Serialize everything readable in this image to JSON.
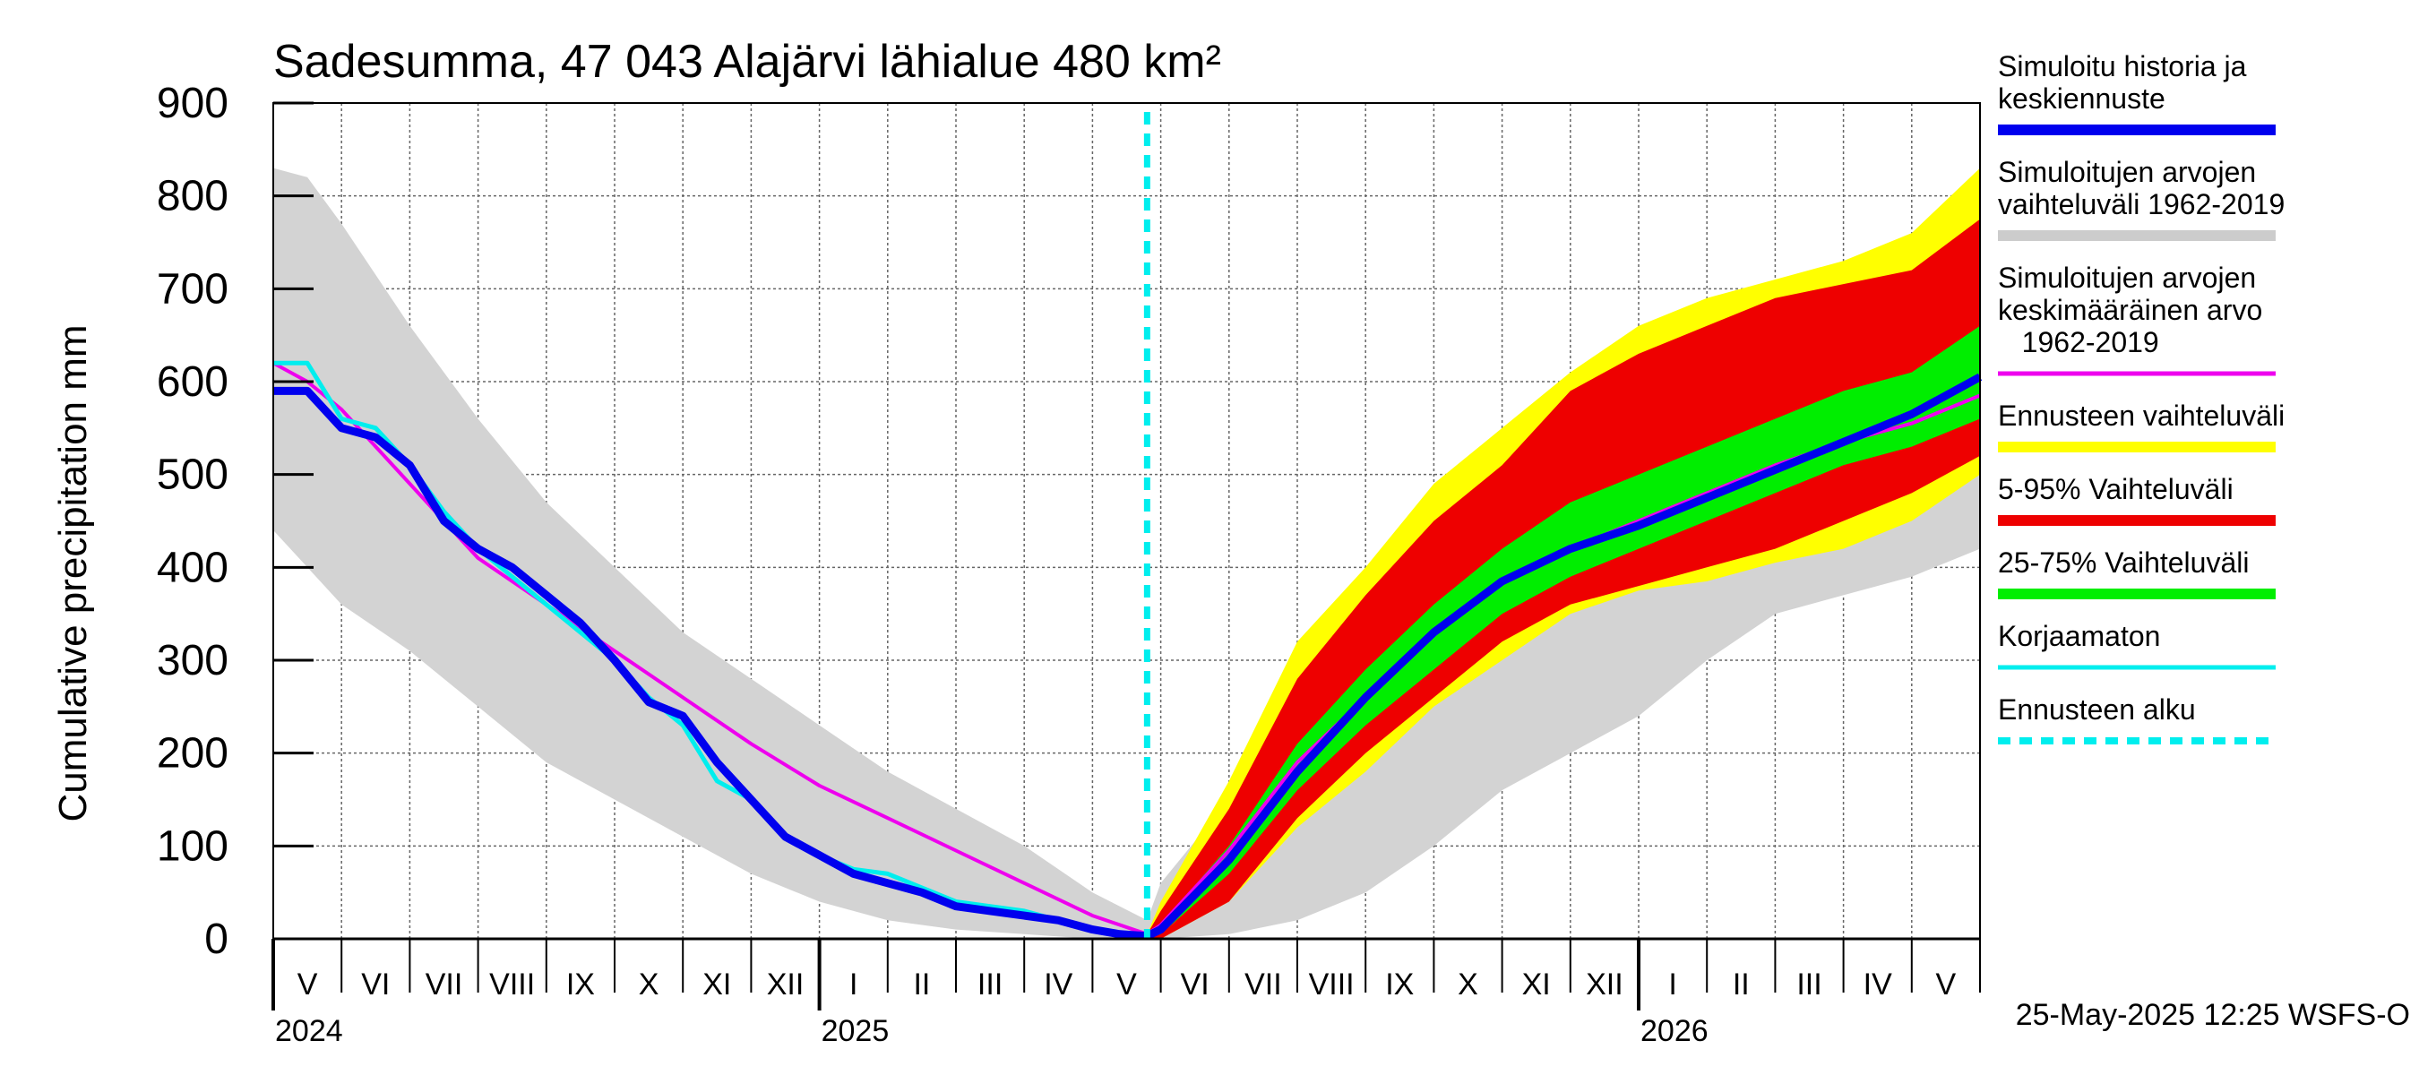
{
  "chart_data": {
    "type": "area",
    "title": "Sadesumma, 47 043 Alajärvi lähialue 480 km²",
    "ylabel": "Cumulative precipitation   mm",
    "xlabel": "",
    "ylim": [
      0,
      900
    ],
    "yticks": [
      0,
      100,
      200,
      300,
      400,
      500,
      600,
      700,
      800,
      900
    ],
    "grid": true,
    "x_unit": "months since 1 May 2024",
    "xlim": [
      0,
      25
    ],
    "month_labels": [
      "V",
      "VI",
      "VII",
      "VIII",
      "IX",
      "X",
      "XI",
      "XII",
      "I",
      "II",
      "III",
      "IV",
      "V",
      "VI",
      "VII",
      "VIII",
      "IX",
      "X",
      "XI",
      "XII",
      "I",
      "II",
      "III",
      "IV",
      "V"
    ],
    "year_labels": [
      {
        "label": "2024",
        "x": 0
      },
      {
        "label": "2025",
        "x": 8
      },
      {
        "label": "2026",
        "x": 20
      }
    ],
    "forecast_start_x": 12.8,
    "legend_position": "right",
    "footer": "25-May-2025 12:25 WSFS-O",
    "legend": [
      {
        "label": "Simuloitu historia ja\nkeskiennuste",
        "color": "#0000ee",
        "style": "thick"
      },
      {
        "label": "Simuloitujen arvojen\nvaihteluväli 1962-2019",
        "color": "#cccccc",
        "style": "thick"
      },
      {
        "label": "Simuloitujen arvojen\nkeskimääräinen arvo\n   1962-2019",
        "color": "#ee00ee",
        "style": "thin"
      },
      {
        "label": "Ennusteen vaihteluväli",
        "color": "#ffff00",
        "style": "thick"
      },
      {
        "label": "5-95% Vaihteluväli",
        "color": "#ee0000",
        "style": "thick"
      },
      {
        "label": "25-75% Vaihteluväli",
        "color": "#00ee00",
        "style": "thick"
      },
      {
        "label": "Korjaamaton",
        "color": "#00eeee",
        "style": "thin"
      },
      {
        "label": "Ennusteen alku",
        "color": "#00eeee",
        "style": "dashed"
      }
    ],
    "series": [
      {
        "name": "Simuloitujen arvojen vaihteluväli 1962-2019 (upper)",
        "color": "#cccccc",
        "x": [
          0,
          0.5,
          1,
          2,
          3,
          4,
          5,
          6,
          7,
          8,
          9,
          10,
          11,
          12,
          12.8,
          13,
          14,
          15,
          16,
          17,
          18,
          19,
          20,
          21,
          22,
          23,
          24,
          25
        ],
        "values": [
          830,
          820,
          770,
          660,
          560,
          470,
          400,
          330,
          280,
          230,
          180,
          140,
          100,
          50,
          20,
          60,
          150,
          240,
          320,
          390,
          440,
          490,
          540,
          590,
          640,
          700,
          760,
          790
        ]
      },
      {
        "name": "Simuloitujen arvojen vaihteluväli 1962-2019 (lower)",
        "color": "#cccccc",
        "x": [
          0,
          0.5,
          1,
          2,
          3,
          4,
          5,
          6,
          7,
          8,
          9,
          10,
          11,
          12,
          12.8,
          13,
          14,
          15,
          16,
          17,
          18,
          19,
          20,
          21,
          22,
          23,
          24,
          25
        ],
        "values": [
          440,
          400,
          360,
          310,
          250,
          190,
          150,
          110,
          70,
          40,
          20,
          10,
          5,
          0,
          0,
          0,
          5,
          20,
          50,
          100,
          160,
          200,
          240,
          300,
          350,
          370,
          390,
          420
        ]
      },
      {
        "name": "Ennusteen vaihteluväli (upper)",
        "color": "#ffff00",
        "x": [
          12.8,
          13,
          14,
          15,
          16,
          17,
          18,
          19,
          20,
          21,
          22,
          23,
          24,
          25
        ],
        "values": [
          5,
          40,
          170,
          320,
          400,
          490,
          550,
          610,
          660,
          690,
          710,
          730,
          760,
          830
        ]
      },
      {
        "name": "Ennusteen vaihteluväli (lower)",
        "color": "#ffff00",
        "x": [
          12.8,
          13,
          14,
          15,
          16,
          17,
          18,
          19,
          20,
          21,
          22,
          23,
          24,
          25
        ],
        "values": [
          0,
          0,
          40,
          120,
          180,
          250,
          300,
          350,
          375,
          385,
          405,
          420,
          450,
          500
        ]
      },
      {
        "name": "5-95% Vaihteluväli (upper)",
        "color": "#ee0000",
        "x": [
          12.8,
          13,
          14,
          15,
          16,
          17,
          18,
          19,
          20,
          21,
          22,
          23,
          24,
          25
        ],
        "values": [
          5,
          30,
          140,
          280,
          370,
          450,
          510,
          590,
          630,
          660,
          690,
          705,
          720,
          775
        ]
      },
      {
        "name": "5-95% Vaihteluväli (lower)",
        "color": "#ee0000",
        "x": [
          12.8,
          13,
          14,
          15,
          16,
          17,
          18,
          19,
          20,
          21,
          22,
          23,
          24,
          25
        ],
        "values": [
          0,
          0,
          40,
          130,
          200,
          260,
          320,
          360,
          380,
          400,
          420,
          450,
          480,
          520
        ]
      },
      {
        "name": "25-75% Vaihteluväli (upper)",
        "color": "#00ee00",
        "x": [
          12.8,
          13,
          14,
          15,
          16,
          17,
          18,
          19,
          20,
          21,
          22,
          23,
          24,
          25
        ],
        "values": [
          3,
          15,
          100,
          210,
          290,
          360,
          420,
          470,
          500,
          530,
          560,
          590,
          610,
          660
        ]
      },
      {
        "name": "25-75% Vaihteluväli (lower)",
        "color": "#00ee00",
        "x": [
          12.8,
          13,
          14,
          15,
          16,
          17,
          18,
          19,
          20,
          21,
          22,
          23,
          24,
          25
        ],
        "values": [
          0,
          5,
          70,
          160,
          230,
          290,
          350,
          390,
          420,
          450,
          480,
          510,
          530,
          560
        ]
      },
      {
        "name": "Simuloitujen arvojen keskimääräinen arvo 1962-2019",
        "color": "#ee00ee",
        "x": [
          0,
          0.5,
          1,
          2,
          3,
          4,
          5,
          6,
          7,
          8,
          9,
          10,
          11,
          12,
          12.8,
          13,
          14,
          15,
          16,
          17,
          18,
          19,
          20,
          21,
          22,
          23,
          24,
          25
        ],
        "values": [
          620,
          600,
          570,
          490,
          410,
          360,
          310,
          260,
          210,
          165,
          130,
          95,
          60,
          25,
          5,
          15,
          95,
          190,
          260,
          330,
          385,
          420,
          450,
          480,
          510,
          535,
          555,
          585
        ]
      },
      {
        "name": "Korjaamaton",
        "color": "#00eeee",
        "x": [
          0,
          0.5,
          1,
          1.5,
          2,
          2.5,
          3,
          3.5,
          4,
          4.5,
          5,
          5.5,
          6,
          6.5,
          7,
          7.5,
          8,
          8.5,
          9,
          9.5,
          10,
          10.5,
          11,
          11.5,
          12,
          12.4,
          12.8
        ],
        "values": [
          620,
          620,
          560,
          550,
          510,
          460,
          420,
          390,
          360,
          330,
          300,
          260,
          230,
          170,
          150,
          110,
          90,
          75,
          70,
          55,
          40,
          35,
          30,
          20,
          10,
          5,
          5
        ]
      },
      {
        "name": "Simuloitu historia ja keskiennuste",
        "color": "#0000ee",
        "x": [
          0,
          0.5,
          1,
          1.5,
          2,
          2.5,
          3,
          3.5,
          4,
          4.5,
          5,
          5.5,
          6,
          6.5,
          7,
          7.5,
          8,
          8.5,
          9,
          9.5,
          10,
          10.5,
          11,
          11.5,
          12,
          12.4,
          12.8,
          13,
          14,
          15,
          16,
          17,
          18,
          19,
          20,
          21,
          22,
          23,
          24,
          25
        ],
        "values": [
          590,
          590,
          550,
          540,
          510,
          450,
          420,
          400,
          370,
          340,
          300,
          255,
          240,
          190,
          150,
          110,
          90,
          70,
          60,
          50,
          35,
          30,
          25,
          20,
          10,
          5,
          3,
          10,
          85,
          180,
          260,
          330,
          385,
          420,
          445,
          475,
          505,
          535,
          565,
          605
        ]
      }
    ]
  }
}
